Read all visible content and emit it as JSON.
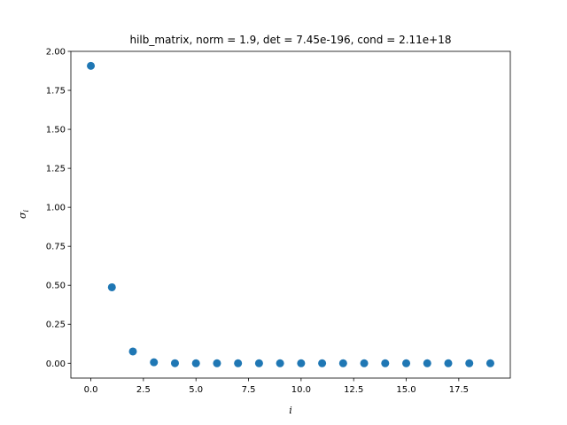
{
  "chart_data": {
    "type": "scatter",
    "title": "hilb_matrix, norm = 1.9, det = 7.45e-196, cond = 2.11e+18",
    "xlabel": "i",
    "ylabel": "σ",
    "ylabel_subscript": "i",
    "xlim": [
      -0.95,
      19.95
    ],
    "ylim": [
      -0.095,
      2.0
    ],
    "xticks": [
      0.0,
      2.5,
      5.0,
      7.5,
      10.0,
      12.5,
      15.0,
      17.5
    ],
    "xtick_labels": [
      "0.0",
      "2.5",
      "5.0",
      "7.5",
      "10.0",
      "12.5",
      "15.0",
      "17.5"
    ],
    "yticks": [
      0.0,
      0.25,
      0.5,
      0.75,
      1.0,
      1.25,
      1.5,
      1.75,
      2.0
    ],
    "ytick_labels": [
      "0.00",
      "0.25",
      "0.50",
      "0.75",
      "1.00",
      "1.25",
      "1.50",
      "1.75",
      "2.00"
    ],
    "grid": false,
    "marker_color": "#1f77b4",
    "series": [
      {
        "x": [
          0,
          1,
          2,
          3,
          4,
          5,
          6,
          7,
          8,
          9,
          10,
          11,
          12,
          13,
          14,
          15,
          16,
          17,
          18,
          19
        ],
        "values": [
          1.907,
          0.487,
          0.0754,
          0.0064,
          0.0003,
          0.0,
          0.0,
          0.0,
          0.0,
          0.0,
          0.0,
          0.0,
          0.0,
          0.0,
          0.0,
          0.0,
          0.0,
          0.0,
          0.0,
          0.0
        ]
      }
    ]
  }
}
